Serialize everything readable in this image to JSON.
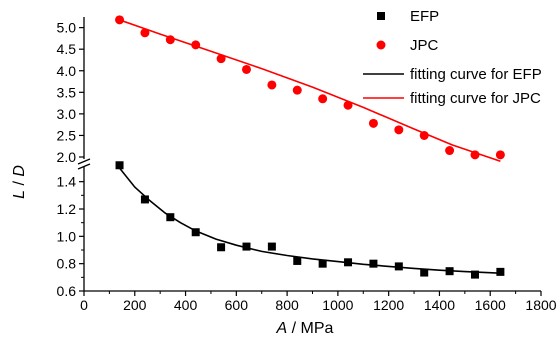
{
  "chart_data": {
    "type": "scatter",
    "title": "",
    "xlabel": {
      "var": "A",
      "unit": " / MPa"
    },
    "ylabel": {
      "var1": "L",
      "sep": " / ",
      "var2": "D"
    },
    "xlim": [
      0,
      1800
    ],
    "x_ticks": [
      "0",
      "200",
      "400",
      "600",
      "800",
      "1000",
      "1200",
      "1400",
      "1600",
      "1800"
    ],
    "y_axis_broken": true,
    "lower_ylim": [
      0.6,
      1.5
    ],
    "lower_y_ticks": [
      "0.6",
      "0.8",
      "1.0",
      "1.2",
      "1.4"
    ],
    "upper_ylim": [
      2.0,
      5.2
    ],
    "upper_y_ticks": [
      "2.0",
      "2.5",
      "3.0",
      "3.5",
      "4.0",
      "4.5",
      "5.0"
    ],
    "legend_position": "top-right",
    "series": [
      {
        "name": "EFP",
        "marker": "square",
        "color": "#000000",
        "segment": "lower",
        "points": [
          [
            140,
            1.52
          ],
          [
            240,
            1.27
          ],
          [
            340,
            1.14
          ],
          [
            440,
            1.03
          ],
          [
            540,
            0.92
          ],
          [
            640,
            0.925
          ],
          [
            740,
            0.925
          ],
          [
            840,
            0.82
          ],
          [
            940,
            0.8
          ],
          [
            1040,
            0.81
          ],
          [
            1140,
            0.8
          ],
          [
            1240,
            0.78
          ],
          [
            1340,
            0.735
          ],
          [
            1440,
            0.745
          ],
          [
            1540,
            0.72
          ],
          [
            1640,
            0.74
          ]
        ]
      },
      {
        "name": "JPC",
        "marker": "circle",
        "color": "#ff0000",
        "segment": "upper",
        "points": [
          [
            140,
            5.18
          ],
          [
            240,
            4.88
          ],
          [
            340,
            4.72
          ],
          [
            440,
            4.6
          ],
          [
            540,
            4.28
          ],
          [
            640,
            4.03
          ],
          [
            740,
            3.67
          ],
          [
            840,
            3.55
          ],
          [
            940,
            3.35
          ],
          [
            1040,
            3.2
          ],
          [
            1140,
            2.78
          ],
          [
            1240,
            2.63
          ],
          [
            1340,
            2.5
          ],
          [
            1440,
            2.15
          ],
          [
            1540,
            2.05
          ],
          [
            1640,
            2.05
          ]
        ]
      }
    ],
    "fits": [
      {
        "name": "fitting curve for EFP",
        "color": "#000000",
        "segment": "lower",
        "points": [
          [
            140,
            1.5
          ],
          [
            200,
            1.36
          ],
          [
            260,
            1.26
          ],
          [
            320,
            1.17
          ],
          [
            380,
            1.1
          ],
          [
            440,
            1.04
          ],
          [
            520,
            0.98
          ],
          [
            600,
            0.935
          ],
          [
            700,
            0.89
          ],
          [
            800,
            0.86
          ],
          [
            900,
            0.835
          ],
          [
            1000,
            0.815
          ],
          [
            1100,
            0.795
          ],
          [
            1200,
            0.78
          ],
          [
            1300,
            0.765
          ],
          [
            1400,
            0.752
          ],
          [
            1500,
            0.742
          ],
          [
            1640,
            0.73
          ]
        ]
      },
      {
        "name": "fitting curve for JPC",
        "color": "#ff0000",
        "segment": "upper",
        "points": [
          [
            140,
            5.18
          ],
          [
            300,
            4.85
          ],
          [
            500,
            4.45
          ],
          [
            700,
            4.05
          ],
          [
            900,
            3.62
          ],
          [
            1100,
            3.15
          ],
          [
            1300,
            2.65
          ],
          [
            1450,
            2.28
          ],
          [
            1640,
            1.9
          ]
        ]
      }
    ]
  }
}
